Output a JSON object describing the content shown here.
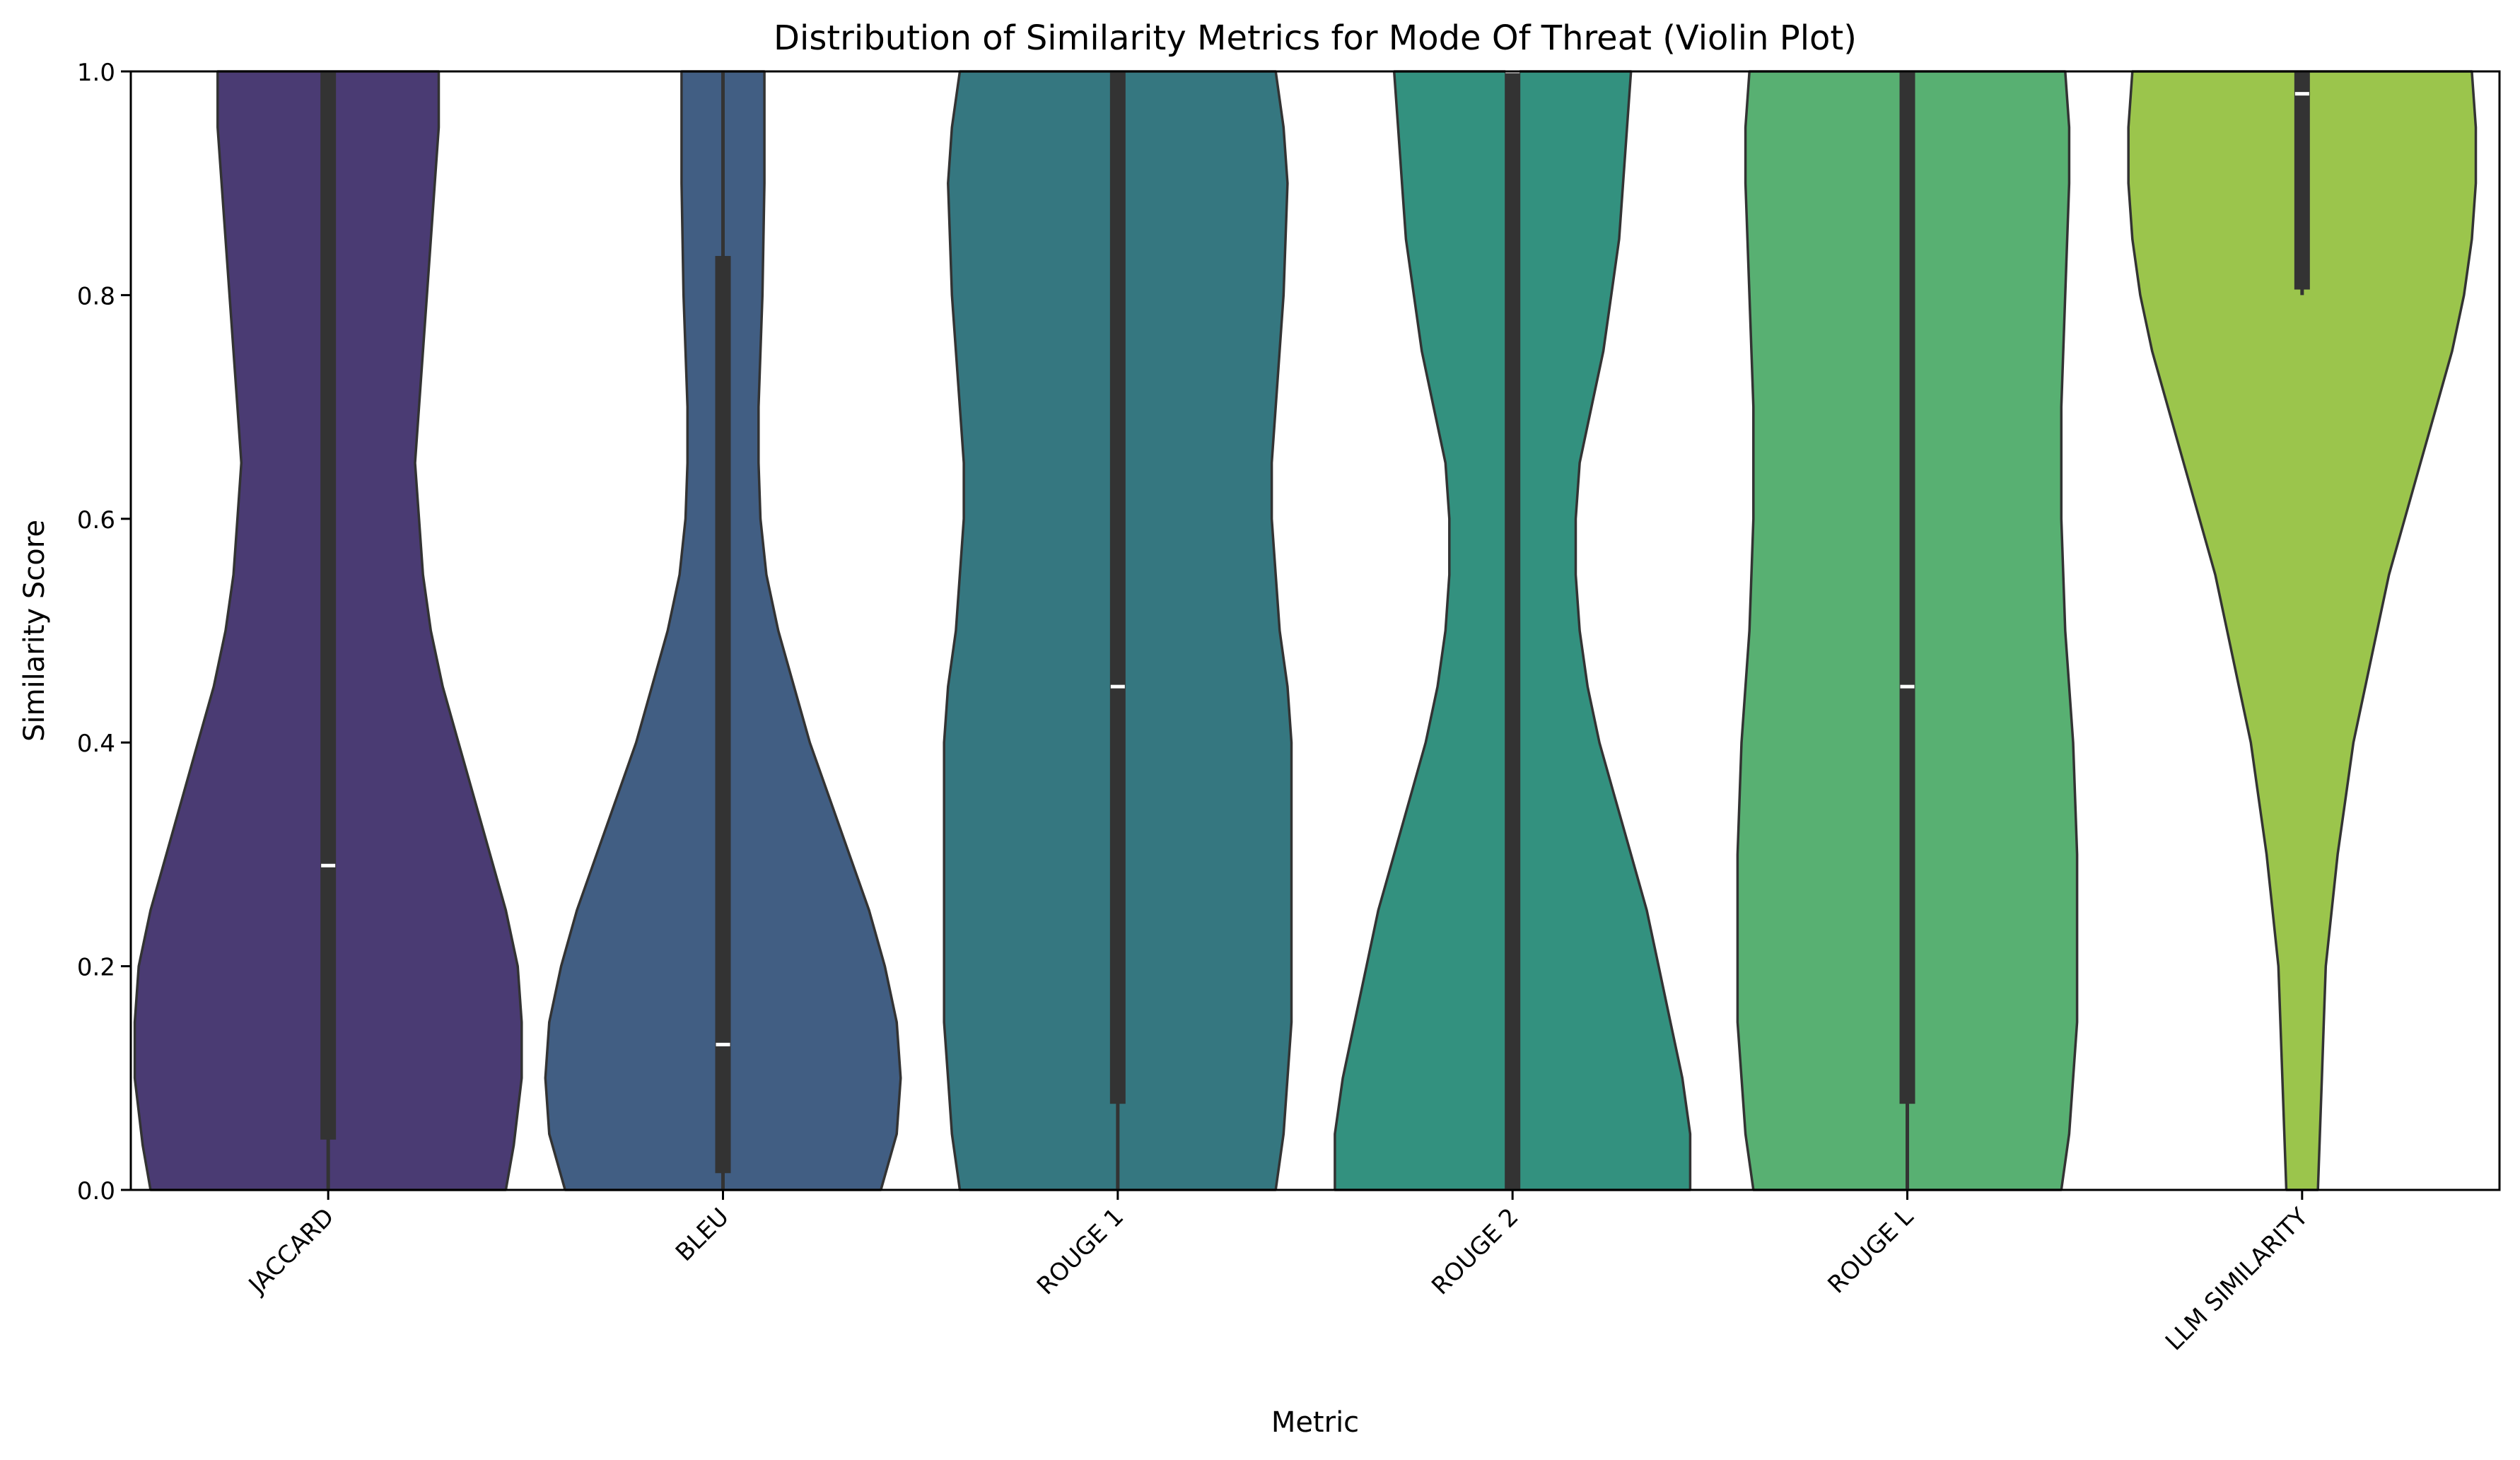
{
  "chart_data": {
    "type": "violin",
    "title": "Distribution of Similarity Metrics for Mode Of Threat (Violin Plot)",
    "xlabel": "Metric",
    "ylabel": "Similarity Score",
    "ylim": [
      0,
      1
    ],
    "yticks": [
      "0.0",
      "0.2",
      "0.4",
      "0.6",
      "0.8",
      "1.0"
    ],
    "ytick_values": [
      0,
      0.2,
      0.4,
      0.6,
      0.8,
      1.0
    ],
    "grid": false,
    "legend": "none",
    "categories": [
      "JACCARD",
      "BLEU",
      "ROUGE 1",
      "ROUGE 2",
      "ROUGE L",
      "LLM SIMILARITY"
    ],
    "colors": [
      "#4a3b73",
      "#415e83",
      "#357780",
      "#33917f",
      "#58b072",
      "#9bc54c"
    ],
    "edge_color": "#333333",
    "box_color": "#333333",
    "median_color": "#ffffff",
    "violins": [
      {
        "name": "JACCARD",
        "median": 0.29,
        "q1": 0.045,
        "q3": 1.0,
        "whisker_low": 0.0,
        "whisker_high": 1.0,
        "density": [
          [
            0,
            0.45
          ],
          [
            0.04,
            0.47
          ],
          [
            0.1,
            0.49
          ],
          [
            0.15,
            0.49
          ],
          [
            0.2,
            0.48
          ],
          [
            0.25,
            0.45
          ],
          [
            0.3,
            0.41
          ],
          [
            0.35,
            0.37
          ],
          [
            0.4,
            0.33
          ],
          [
            0.45,
            0.29
          ],
          [
            0.5,
            0.26
          ],
          [
            0.55,
            0.24
          ],
          [
            0.6,
            0.23
          ],
          [
            0.65,
            0.22
          ],
          [
            0.7,
            0.23
          ],
          [
            0.8,
            0.25
          ],
          [
            0.9,
            0.27
          ],
          [
            0.95,
            0.28
          ],
          [
            1.0,
            0.28
          ]
        ]
      },
      {
        "name": "BLEU",
        "median": 0.13,
        "q1": 0.015,
        "q3": 0.835,
        "whisker_low": 0.0,
        "whisker_high": 1.0,
        "density": [
          [
            0,
            0.4
          ],
          [
            0.05,
            0.44
          ],
          [
            0.1,
            0.45
          ],
          [
            0.15,
            0.44
          ],
          [
            0.2,
            0.41
          ],
          [
            0.25,
            0.37
          ],
          [
            0.3,
            0.32
          ],
          [
            0.35,
            0.27
          ],
          [
            0.4,
            0.22
          ],
          [
            0.45,
            0.18
          ],
          [
            0.5,
            0.14
          ],
          [
            0.55,
            0.11
          ],
          [
            0.6,
            0.095
          ],
          [
            0.65,
            0.09
          ],
          [
            0.7,
            0.09
          ],
          [
            0.8,
            0.1
          ],
          [
            0.9,
            0.105
          ],
          [
            1.0,
            0.105
          ]
        ]
      },
      {
        "name": "ROUGE 1",
        "median": 0.45,
        "q1": 0.077,
        "q3": 1.0,
        "whisker_low": 0.0,
        "whisker_high": 1.0,
        "density": [
          [
            0,
            0.4
          ],
          [
            0.05,
            0.42
          ],
          [
            0.1,
            0.43
          ],
          [
            0.15,
            0.44
          ],
          [
            0.2,
            0.44
          ],
          [
            0.3,
            0.44
          ],
          [
            0.4,
            0.44
          ],
          [
            0.45,
            0.43
          ],
          [
            0.5,
            0.41
          ],
          [
            0.6,
            0.39
          ],
          [
            0.65,
            0.39
          ],
          [
            0.7,
            0.4
          ],
          [
            0.8,
            0.42
          ],
          [
            0.9,
            0.43
          ],
          [
            0.95,
            0.42
          ],
          [
            1.0,
            0.4
          ]
        ]
      },
      {
        "name": "ROUGE 2",
        "median": 1.0,
        "q1": 0.0,
        "q3": 1.0,
        "whisker_low": 0.0,
        "whisker_high": 1.0,
        "density": [
          [
            0,
            0.45
          ],
          [
            0.05,
            0.45
          ],
          [
            0.1,
            0.43
          ],
          [
            0.15,
            0.4
          ],
          [
            0.2,
            0.37
          ],
          [
            0.25,
            0.34
          ],
          [
            0.3,
            0.3
          ],
          [
            0.35,
            0.26
          ],
          [
            0.4,
            0.22
          ],
          [
            0.45,
            0.19
          ],
          [
            0.5,
            0.17
          ],
          [
            0.55,
            0.16
          ],
          [
            0.6,
            0.16
          ],
          [
            0.65,
            0.17
          ],
          [
            0.7,
            0.2
          ],
          [
            0.75,
            0.23
          ],
          [
            0.8,
            0.25
          ],
          [
            0.85,
            0.27
          ],
          [
            0.9,
            0.28
          ],
          [
            0.95,
            0.29
          ],
          [
            1.0,
            0.3
          ]
        ]
      },
      {
        "name": "ROUGE L",
        "median": 0.45,
        "q1": 0.077,
        "q3": 1.0,
        "whisker_low": 0.0,
        "whisker_high": 1.0,
        "density": [
          [
            0,
            0.39
          ],
          [
            0.05,
            0.41
          ],
          [
            0.1,
            0.42
          ],
          [
            0.15,
            0.43
          ],
          [
            0.2,
            0.43
          ],
          [
            0.3,
            0.43
          ],
          [
            0.4,
            0.42
          ],
          [
            0.45,
            0.41
          ],
          [
            0.5,
            0.4
          ],
          [
            0.6,
            0.39
          ],
          [
            0.7,
            0.39
          ],
          [
            0.8,
            0.4
          ],
          [
            0.9,
            0.41
          ],
          [
            0.95,
            0.41
          ],
          [
            1.0,
            0.4
          ]
        ]
      },
      {
        "name": "LLM SIMILARITY",
        "median": 0.98,
        "q1": 0.805,
        "q3": 1.0,
        "whisker_low": 0.8,
        "whisker_high": 1.0,
        "density": [
          [
            0,
            0.04
          ],
          [
            0.05,
            0.045
          ],
          [
            0.1,
            0.05
          ],
          [
            0.15,
            0.055
          ],
          [
            0.2,
            0.06
          ],
          [
            0.25,
            0.075
          ],
          [
            0.3,
            0.09
          ],
          [
            0.35,
            0.11
          ],
          [
            0.4,
            0.13
          ],
          [
            0.45,
            0.16
          ],
          [
            0.5,
            0.19
          ],
          [
            0.55,
            0.22
          ],
          [
            0.6,
            0.26
          ],
          [
            0.65,
            0.3
          ],
          [
            0.7,
            0.34
          ],
          [
            0.75,
            0.38
          ],
          [
            0.8,
            0.41
          ],
          [
            0.85,
            0.43
          ],
          [
            0.9,
            0.44
          ],
          [
            0.95,
            0.44
          ],
          [
            1.0,
            0.43
          ]
        ]
      }
    ]
  }
}
